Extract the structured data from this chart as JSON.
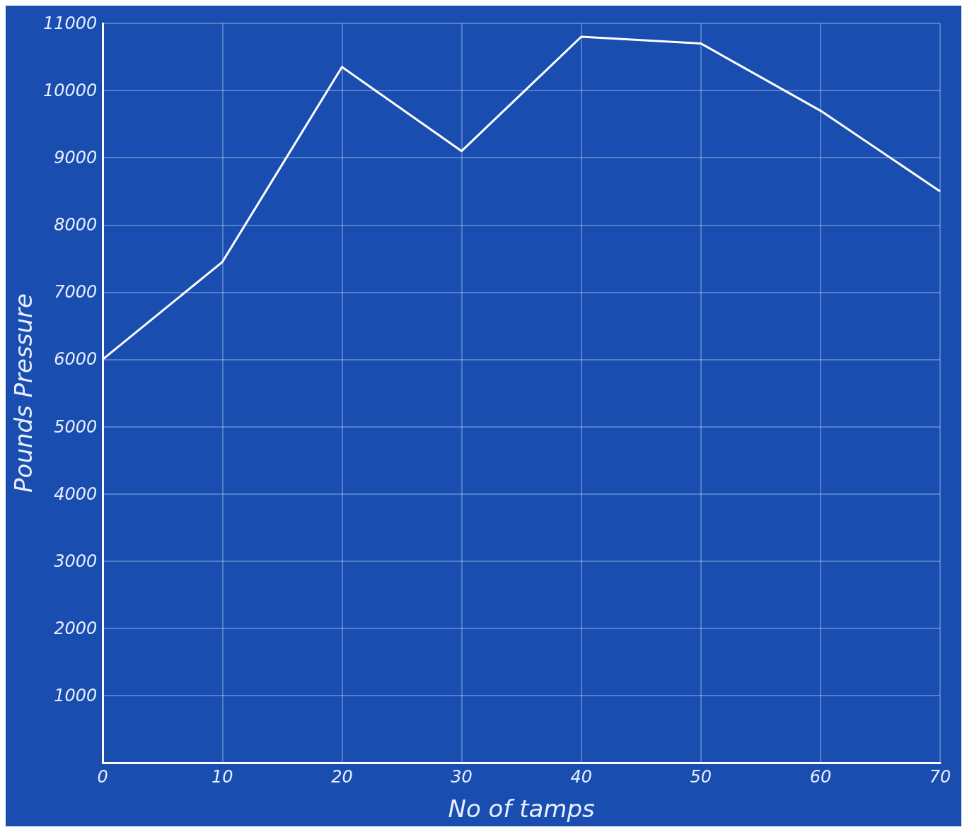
{
  "chart_data": {
    "type": "line",
    "xlabel": "No of tamps",
    "ylabel": "Pounds Pressure",
    "x": [
      0,
      10,
      20,
      30,
      40,
      50,
      60,
      70
    ],
    "series": [
      {
        "color": "#ffffff",
        "values": [
          6000,
          7450,
          10350,
          9100,
          10800,
          10700,
          9700,
          8500
        ]
      }
    ],
    "xlim": [
      0,
      70
    ],
    "xticks": [
      0,
      10,
      20,
      30,
      40,
      50,
      60,
      70
    ],
    "ylim": [
      0,
      11000
    ],
    "yticks": [
      {
        "value": 0,
        "label": null
      },
      1000,
      2000,
      3000,
      4000,
      5000,
      6000,
      7000,
      8000,
      9000,
      10000,
      11000
    ],
    "grid": true,
    "marker": "none",
    "line_style": "solid"
  }
}
